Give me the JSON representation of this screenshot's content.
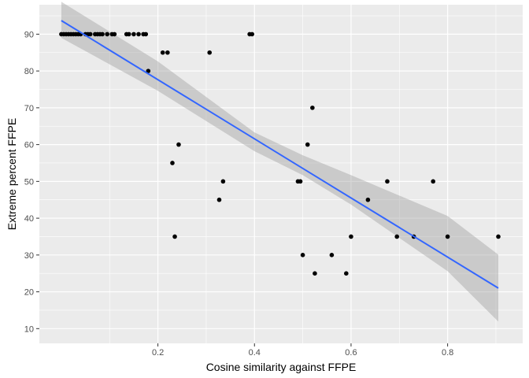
{
  "chart_data": {
    "type": "scatter",
    "xlabel": "Cosine similarity against FFPE",
    "ylabel": "Extreme percent FFPE",
    "xlim": [
      -0.0455,
      0.9555
    ],
    "ylim": [
      6,
      98
    ],
    "x_ticks": [
      0.2,
      0.4,
      0.6,
      0.8
    ],
    "x_tick_labels": [
      "0.2",
      "0.4",
      "0.6",
      "0.8"
    ],
    "y_ticks": [
      10,
      20,
      30,
      40,
      50,
      60,
      70,
      80,
      90
    ],
    "y_tick_labels": [
      "10",
      "20",
      "30",
      "40",
      "50",
      "60",
      "70",
      "80",
      "90"
    ],
    "x_minor_ticks": [
      0.1,
      0.3,
      0.5,
      0.7,
      0.9
    ],
    "y_minor_ticks": [
      15,
      25,
      35,
      45,
      55,
      65,
      75,
      85,
      95
    ],
    "grid": true,
    "colors": {
      "panel_background": "#ebebeb",
      "grid": "#ffffff",
      "points": "#000000",
      "fit_line": "#3366ff",
      "confidence_band": "#999999"
    },
    "points": [
      {
        "x": 0.0,
        "y": 90
      },
      {
        "x": 0.005,
        "y": 90
      },
      {
        "x": 0.01,
        "y": 90
      },
      {
        "x": 0.015,
        "y": 90
      },
      {
        "x": 0.02,
        "y": 90
      },
      {
        "x": 0.025,
        "y": 90
      },
      {
        "x": 0.03,
        "y": 90
      },
      {
        "x": 0.035,
        "y": 90
      },
      {
        "x": 0.04,
        "y": 90
      },
      {
        "x": 0.05,
        "y": 90
      },
      {
        "x": 0.055,
        "y": 90
      },
      {
        "x": 0.06,
        "y": 90
      },
      {
        "x": 0.07,
        "y": 90
      },
      {
        "x": 0.075,
        "y": 90
      },
      {
        "x": 0.08,
        "y": 90
      },
      {
        "x": 0.085,
        "y": 90
      },
      {
        "x": 0.095,
        "y": 90
      },
      {
        "x": 0.105,
        "y": 90
      },
      {
        "x": 0.11,
        "y": 90
      },
      {
        "x": 0.135,
        "y": 90
      },
      {
        "x": 0.14,
        "y": 90
      },
      {
        "x": 0.15,
        "y": 90
      },
      {
        "x": 0.16,
        "y": 90
      },
      {
        "x": 0.17,
        "y": 90
      },
      {
        "x": 0.175,
        "y": 90
      },
      {
        "x": 0.39,
        "y": 90
      },
      {
        "x": 0.395,
        "y": 90
      },
      {
        "x": 0.18,
        "y": 80
      },
      {
        "x": 0.21,
        "y": 85
      },
      {
        "x": 0.22,
        "y": 85
      },
      {
        "x": 0.307,
        "y": 85
      },
      {
        "x": 0.52,
        "y": 70
      },
      {
        "x": 0.243,
        "y": 60
      },
      {
        "x": 0.51,
        "y": 60
      },
      {
        "x": 0.23,
        "y": 55
      },
      {
        "x": 0.335,
        "y": 50
      },
      {
        "x": 0.49,
        "y": 50
      },
      {
        "x": 0.495,
        "y": 50
      },
      {
        "x": 0.675,
        "y": 50
      },
      {
        "x": 0.77,
        "y": 50
      },
      {
        "x": 0.327,
        "y": 45
      },
      {
        "x": 0.635,
        "y": 45
      },
      {
        "x": 0.235,
        "y": 35
      },
      {
        "x": 0.6,
        "y": 35
      },
      {
        "x": 0.695,
        "y": 35
      },
      {
        "x": 0.73,
        "y": 35
      },
      {
        "x": 0.8,
        "y": 35
      },
      {
        "x": 0.905,
        "y": 35
      },
      {
        "x": 0.5,
        "y": 30
      },
      {
        "x": 0.56,
        "y": 30
      },
      {
        "x": 0.525,
        "y": 25
      },
      {
        "x": 0.59,
        "y": 25
      }
    ],
    "fit_line": {
      "x": [
        0.0,
        0.905
      ],
      "y": [
        93.7,
        21.0
      ]
    },
    "confidence_band": {
      "x": [
        0.0,
        0.2,
        0.4,
        0.5,
        0.6,
        0.8,
        0.905
      ],
      "upper": [
        98.8,
        82.6,
        63.3,
        57.1,
        51.7,
        40.6,
        30.1
      ],
      "lower": [
        89.0,
        74.6,
        58.2,
        51.7,
        43.7,
        25.6,
        11.9
      ]
    }
  }
}
